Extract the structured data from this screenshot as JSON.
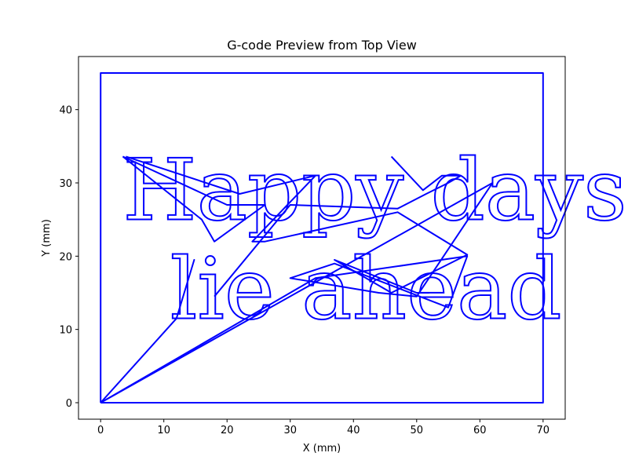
{
  "chart_data": {
    "type": "line",
    "title": "G-code Preview from Top View",
    "xlabel": "X (mm)",
    "ylabel": "Y (mm)",
    "xlim": [
      -3.5,
      73.5
    ],
    "ylim": [
      -2.25,
      47.25
    ],
    "xticks": [
      0,
      10,
      20,
      30,
      40,
      50,
      60,
      70
    ],
    "yticks": [
      0,
      10,
      20,
      30,
      40
    ],
    "line_color": "#0000ff",
    "grid": false,
    "series": [
      {
        "x": [
          0,
          70,
          70,
          0,
          0
        ],
        "y": [
          0,
          0,
          45,
          45,
          0
        ]
      },
      {
        "x": [
          0,
          12,
          14.8,
          12,
          0
        ],
        "y": [
          0,
          11.5,
          19.5,
          11.5,
          0
        ]
      },
      {
        "x": [
          0,
          34,
          58,
          55,
          37,
          30,
          44,
          50,
          62,
          0
        ],
        "y": [
          0,
          17,
          20,
          13,
          19,
          17,
          15,
          14.5,
          30,
          0
        ]
      },
      {
        "x": [
          3.5,
          20,
          26,
          18,
          16,
          3.5
        ],
        "y": [
          33.6,
          27,
          27,
          22,
          25,
          33.6
        ]
      },
      {
        "x": [
          4,
          22,
          34,
          24,
          26,
          47,
          58,
          46,
          37,
          50,
          52
        ],
        "y": [
          33.6,
          28.5,
          31,
          22,
          22,
          26,
          20.2,
          15,
          19.5,
          15,
          15
        ]
      },
      {
        "x": [
          46,
          51,
          54,
          57,
          55,
          51.5,
          47,
          30,
          18
        ],
        "y": [
          33.6,
          29,
          31,
          31,
          30,
          28.5,
          26.5,
          27,
          14.5
        ]
      }
    ],
    "annotations": [
      {
        "text": "Happy days",
        "x": 3.5,
        "y": 25
      },
      {
        "text": "lie ahead",
        "x": 11,
        "y": 11.5
      }
    ]
  }
}
